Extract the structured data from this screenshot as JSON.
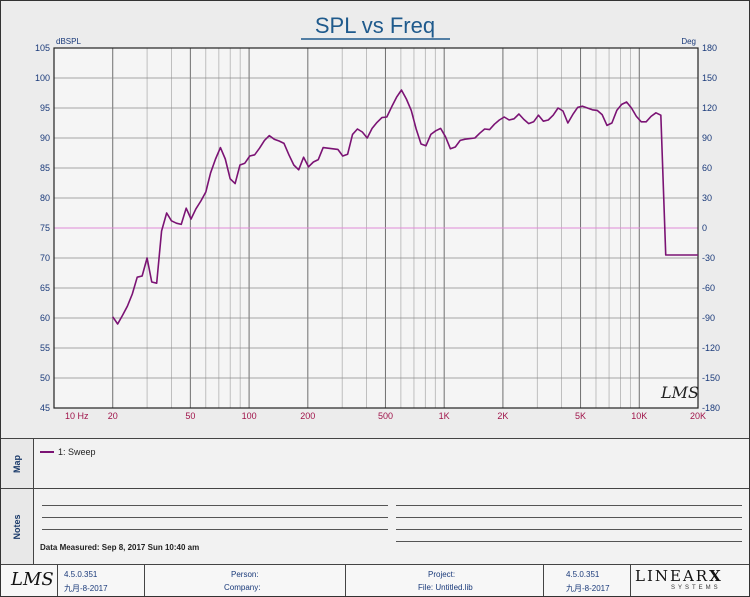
{
  "chart_data": {
    "type": "line",
    "title": "SPL vs Freq",
    "ylabel_left": "dBSPL",
    "ylabel_right": "Deg",
    "xscale": "log",
    "xlim": [
      10,
      20000
    ],
    "ylim": [
      45,
      105
    ],
    "ylim_right": [
      -180,
      180
    ],
    "x_ticks": [
      {
        "v": 10,
        "label": "10  Hz"
      },
      {
        "v": 20,
        "label": "20"
      },
      {
        "v": 50,
        "label": "50"
      },
      {
        "v": 100,
        "label": "100"
      },
      {
        "v": 200,
        "label": "200"
      },
      {
        "v": 500,
        "label": "500"
      },
      {
        "v": 1000,
        "label": "1K"
      },
      {
        "v": 2000,
        "label": "2K"
      },
      {
        "v": 5000,
        "label": "5K"
      },
      {
        "v": 10000,
        "label": "10K"
      },
      {
        "v": 20000,
        "label": "20K"
      }
    ],
    "y_ticks_left": [
      "105",
      "100",
      "95",
      "90",
      "85",
      "80",
      "75",
      "70",
      "65",
      "60",
      "55",
      "50",
      "45"
    ],
    "y_ticks_right": [
      "180",
      "150",
      "120",
      "90",
      "60",
      "30",
      "0",
      "-30",
      "-60",
      "-90",
      "-120",
      "-150",
      "-180"
    ],
    "grid": true,
    "reference_line": {
      "y": 75
    },
    "series": [
      {
        "name": "1: Sweep",
        "color": "#7b1374",
        "x": [
          20,
          21.2,
          22.5,
          23.8,
          25.2,
          26.7,
          28.3,
          30,
          31.7,
          33.6,
          35.6,
          37.8,
          40,
          42.4,
          44.9,
          47.6,
          50.4,
          53.4,
          56.6,
          60,
          63.5,
          67.3,
          71.3,
          75.5,
          80,
          84.8,
          89.8,
          95.1,
          100.8,
          106.8,
          113.1,
          119.9,
          127,
          134.5,
          142.5,
          151,
          160,
          169.5,
          179.6,
          190.3,
          201.6,
          213.6,
          226.3,
          239.7,
          254,
          269.1,
          285.1,
          302,
          320,
          339,
          359.2,
          380.5,
          403.2,
          427.1,
          452.5,
          479.5,
          508,
          538.2,
          570.2,
          604,
          640,
          678,
          718.4,
          761.1,
          806.3,
          854.3,
          905,
          958.9,
          1015.9,
          1076.3,
          1140.3,
          1208.1,
          1279.9,
          1356,
          1436.6,
          1522,
          1612.5,
          1708.4,
          1810,
          1917.6,
          2031.6,
          2152.4,
          2280.4,
          2416,
          2559.6,
          2711.8,
          2873,
          3043.9,
          3224.9,
          3416.6,
          3619.8,
          3835,
          4063,
          4304.6,
          4560.5,
          4831.7,
          5119,
          5423.4,
          5745.9,
          6087.5,
          6449.4,
          6832.9,
          7239.2,
          7669.7,
          8125.7,
          8608.9,
          9120.8,
          9663.1,
          10237.7,
          10846.4,
          11491.3,
          12174.6,
          12898.6,
          13665.5,
          14478,
          15338.9,
          16250.9,
          17217.1,
          18240.8,
          19325.5,
          20000
        ],
        "values": [
          60.2,
          59,
          60.5,
          62,
          64,
          66.8,
          67,
          70,
          66,
          65.8,
          74.5,
          77.5,
          76.2,
          75.8,
          75.6,
          78.3,
          76.5,
          78.2,
          79.5,
          81,
          84.2,
          86.5,
          88.4,
          86.5,
          83.2,
          82.4,
          85.5,
          85.8,
          87,
          87.2,
          88.3,
          89.6,
          90.4,
          89.8,
          89.5,
          89.1,
          87.2,
          85.5,
          84.7,
          86.8,
          85.2,
          86,
          86.4,
          88.4,
          88.3,
          88.2,
          88.1,
          87,
          87.3,
          90.6,
          91.5,
          91,
          90,
          91.6,
          92.6,
          93.4,
          93.5,
          95.2,
          96.8,
          98,
          96.5,
          94.6,
          91.5,
          89,
          88.7,
          90.6,
          91.2,
          91.6,
          90.2,
          88.2,
          88.5,
          89.6,
          89.8,
          89.9,
          90,
          90.8,
          91.5,
          91.4,
          92.3,
          93,
          93.5,
          93,
          93.2,
          94,
          93.1,
          92.4,
          92.7,
          93.8,
          92.8,
          93,
          93.8,
          95,
          94.5,
          92.5,
          93.9,
          95.1,
          95.3,
          95,
          94.7,
          94.6,
          93.9,
          92.1,
          92.5,
          94.6,
          95.6,
          96,
          95,
          93.6,
          92.7,
          92.7,
          93.6,
          94.2,
          93.8,
          70.5,
          70.5,
          70.5,
          70.5,
          70.5,
          70.5,
          70.5,
          70.5
        ]
      }
    ]
  },
  "map_panel": {
    "label": "Map",
    "legend_entry": "1: Sweep"
  },
  "notes_panel": {
    "label": "Notes",
    "data_measured": "Data Measured: Sep 8, 2017 Sun 10:40 am"
  },
  "footer": {
    "version_left": "4.5.0.351",
    "date_left": "九月-8-2017",
    "person_label": "Person:",
    "company_label": "Company:",
    "project_label": "Project:",
    "file_label": "File: Untitled.lib",
    "version_right": "4.5.0.351",
    "date_right": "九月-8-2017",
    "logo_lms": "LMS",
    "brand": "LINEAR",
    "brand_x": "X",
    "brand_sub": "SYSTEMS"
  },
  "plot_watermark": "LMS"
}
